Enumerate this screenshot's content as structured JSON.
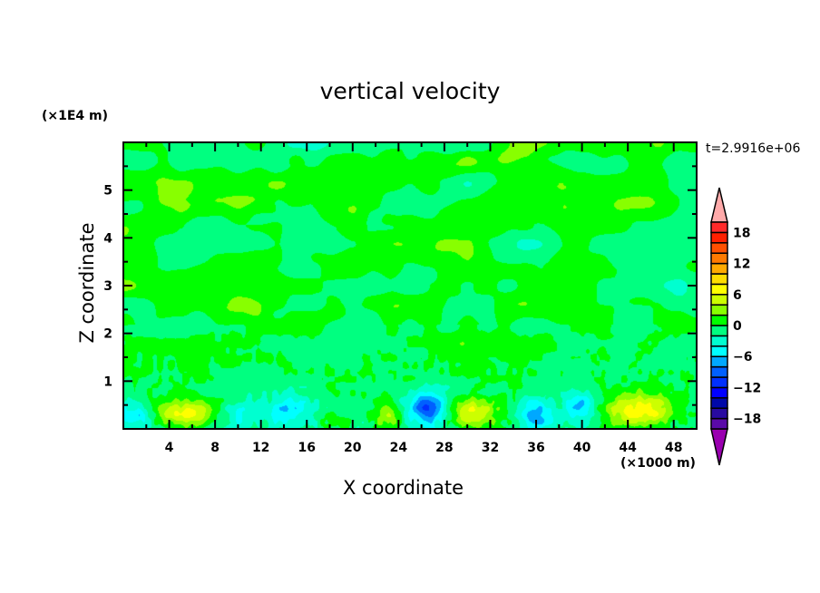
{
  "chart_data": {
    "type": "heatmap",
    "title": "vertical velocity",
    "xlabel": "X coordinate",
    "ylabel": "Z coordinate",
    "x_unit": "(×1000 m)",
    "z_unit": "(×1E4 m)",
    "time_label": "t=2.9916e+06",
    "xlim": [
      0,
      50
    ],
    "ylim": [
      0,
      6
    ],
    "x_ticks": [
      "4",
      "8",
      "12",
      "16",
      "20",
      "24",
      "28",
      "32",
      "36",
      "40",
      "44",
      "48"
    ],
    "y_ticks": [
      "1",
      "2",
      "3",
      "4",
      "5"
    ],
    "colorbar": {
      "levels": [
        -20,
        -18,
        -16,
        -14,
        -12,
        -10,
        -8,
        -6,
        -4,
        -2,
        0,
        2,
        4,
        6,
        8,
        10,
        12,
        14,
        16,
        18,
        20
      ],
      "tick_labels": [
        "18",
        "12",
        "6",
        "0",
        "−6",
        "−12",
        "−18"
      ],
      "tick_values": [
        18,
        12,
        6,
        0,
        -6,
        -12,
        -18
      ],
      "colors": [
        "#5a0aa8",
        "#280aa0",
        "#0008a8",
        "#0000ff",
        "#0030ff",
        "#0060ff",
        "#00a8ff",
        "#00ffff",
        "#00ffd0",
        "#00ff80",
        "#00ff00",
        "#88ff00",
        "#ccff00",
        "#ffff00",
        "#ffdd00",
        "#ffaa00",
        "#ff7a00",
        "#ff5000",
        "#ff2000",
        "#ff2a2a"
      ],
      "under_color": "#9a00b0",
      "over_color": "#ffaaaa",
      "extend": "both"
    }
  }
}
